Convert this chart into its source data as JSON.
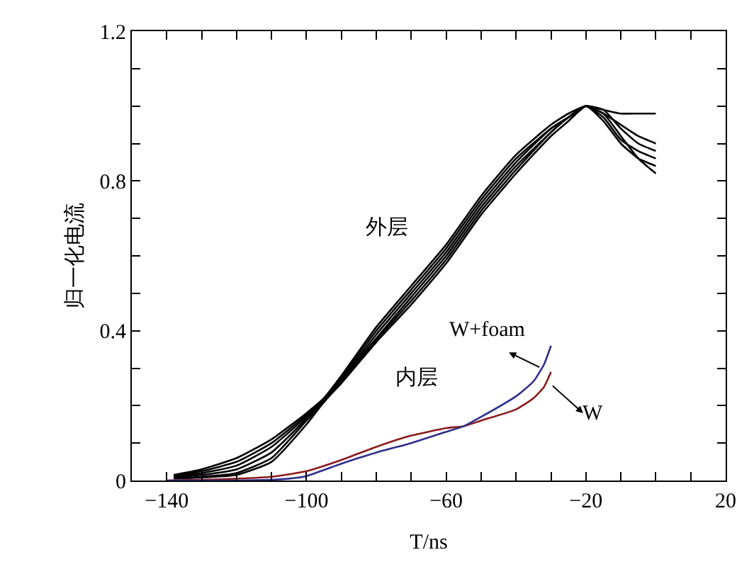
{
  "chart_data": {
    "type": "line",
    "xlabel": "T/ns",
    "ylabel": "归一化电流",
    "xlim": [
      -150,
      20
    ],
    "ylim": [
      0,
      1.2
    ],
    "xticks": [
      {
        "value": -140,
        "label": "−140"
      },
      {
        "value": -130,
        "label": null
      },
      {
        "value": -120,
        "label": null
      },
      {
        "value": -110,
        "label": null
      },
      {
        "value": -100,
        "label": "−100"
      },
      {
        "value": -90,
        "label": null
      },
      {
        "value": -80,
        "label": null
      },
      {
        "value": -70,
        "label": null
      },
      {
        "value": -60,
        "label": "−60"
      },
      {
        "value": -50,
        "label": null
      },
      {
        "value": -40,
        "label": null
      },
      {
        "value": -30,
        "label": null
      },
      {
        "value": -20,
        "label": "−20"
      },
      {
        "value": -10,
        "label": null
      },
      {
        "value": 0,
        "label": null
      },
      {
        "value": 10,
        "label": null
      },
      {
        "value": 20,
        "label": "20"
      }
    ],
    "yticks": [
      0,
      {
        "value": 0.1,
        "label": null
      },
      {
        "value": 0.2,
        "label": null
      },
      {
        "value": 0.3,
        "label": null
      },
      0.4,
      {
        "value": 0.5,
        "label": null
      },
      {
        "value": 0.6,
        "label": null
      },
      {
        "value": 0.7,
        "label": null
      },
      0.8,
      {
        "value": 0.9,
        "label": null
      },
      {
        "value": 1.0,
        "label": null
      },
      {
        "value": 1.1,
        "label": null
      },
      1.2
    ],
    "marker": "none",
    "line_style": "solid",
    "x": [
      -138,
      -130,
      -120,
      -110,
      -100,
      -95,
      -90,
      -80,
      -70,
      -60,
      -50,
      -40,
      -30,
      -25,
      -20,
      -15,
      -10,
      -5,
      0
    ],
    "series": [
      {
        "color": "#000000",
        "values": [
          0.015,
          0.03,
          0.06,
          0.11,
          0.18,
          0.22,
          0.28,
          0.41,
          0.52,
          0.63,
          0.76,
          0.87,
          0.95,
          0.98,
          1.0,
          0.99,
          0.98,
          0.98,
          0.98
        ]
      },
      {
        "color": "#000000",
        "values": [
          0.012,
          0.025,
          0.05,
          0.1,
          0.175,
          0.215,
          0.275,
          0.4,
          0.51,
          0.62,
          0.75,
          0.86,
          0.94,
          0.97,
          1.0,
          0.98,
          0.95,
          0.92,
          0.9
        ]
      },
      {
        "color": "#000000",
        "values": [
          0.01,
          0.02,
          0.04,
          0.09,
          0.17,
          0.21,
          0.27,
          0.39,
          0.5,
          0.61,
          0.74,
          0.85,
          0.94,
          0.97,
          1.0,
          0.99,
          0.94,
          0.9,
          0.88
        ]
      },
      {
        "color": "#000000",
        "values": [
          0.008,
          0.015,
          0.03,
          0.075,
          0.165,
          0.21,
          0.27,
          0.38,
          0.49,
          0.6,
          0.73,
          0.84,
          0.93,
          0.97,
          1.0,
          0.97,
          0.91,
          0.88,
          0.86
        ]
      },
      {
        "color": "#000000",
        "values": [
          0.006,
          0.01,
          0.02,
          0.06,
          0.16,
          0.21,
          0.265,
          0.375,
          0.48,
          0.59,
          0.72,
          0.83,
          0.93,
          0.97,
          1.0,
          0.96,
          0.9,
          0.86,
          0.84
        ]
      },
      {
        "color": "#000000",
        "values": [
          0.005,
          0.008,
          0.015,
          0.05,
          0.15,
          0.21,
          0.26,
          0.37,
          0.47,
          0.58,
          0.71,
          0.82,
          0.92,
          0.96,
          1.0,
          0.98,
          0.92,
          0.86,
          0.82
        ]
      },
      {
        "color": "#8b1a1a",
        "x": [
          -140,
          -130,
          -120,
          -110,
          -100,
          -90,
          -80,
          -70,
          -60,
          -55,
          -50,
          -40,
          -35,
          -32,
          -30
        ],
        "values": [
          0,
          0.002,
          0.005,
          0.01,
          0.025,
          0.055,
          0.09,
          0.12,
          0.14,
          0.145,
          0.16,
          0.19,
          0.22,
          0.25,
          0.29
        ]
      },
      {
        "color": "#2e2e8c",
        "x": [
          -140,
          -130,
          -120,
          -110,
          -105,
          -100,
          -90,
          -80,
          -70,
          -60,
          -55,
          -50,
          -40,
          -35,
          -32,
          -30
        ],
        "values": [
          0,
          0,
          0,
          0.002,
          0.005,
          0.012,
          0.045,
          0.075,
          0.1,
          0.13,
          0.145,
          0.17,
          0.225,
          0.265,
          0.31,
          0.36
        ]
      }
    ],
    "annotations": [
      "外层",
      "内层",
      "W+foam",
      "W"
    ]
  }
}
